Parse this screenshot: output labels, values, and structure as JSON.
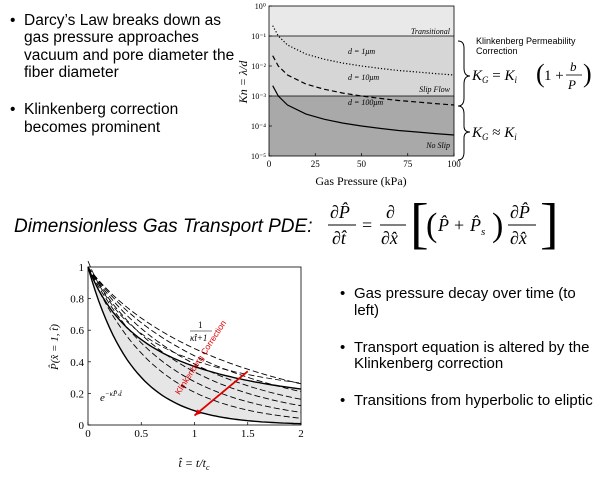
{
  "bullets_top": [
    "Darcy’s Law breaks down as gas pressure approaches vacuum and pore diameter the fiber diameter",
    "Klinkenberg correction becomes prominent"
  ],
  "bullets_bottom": [
    "Gas pressure decay over time (to left)",
    "Transport equation is altered  by the Klinkenberg correction",
    "Transitions from hyperbolic to eliptic"
  ],
  "pde_label": "Dimensionless Gas  Transport PDE:",
  "klinkenberg_note": "Klinkenberg Permeability Correction",
  "equations": {
    "kg_full": "K_G = K_i (1 + b/P)",
    "kg_approx": "K_G ≈ K_i"
  },
  "colors": {
    "transitional_band": "#e9e9e9",
    "slip_band": "#d6d6d6",
    "noslip_band": "#a9a9a9",
    "bottom_fill": "#e6e6e6",
    "arrow": "#e00000"
  },
  "chart_data": [
    {
      "type": "line",
      "xlabel": "Gas Pressure (kPa)",
      "ylabel": "Kn = λ/d",
      "xlim": [
        0,
        100
      ],
      "ylim": [
        1e-05,
        1
      ],
      "yscale": "log",
      "x_ticks": [
        "0",
        "25",
        "50",
        "75",
        "100"
      ],
      "y_ticks": [
        "10⁰",
        "10⁻¹",
        "10⁻²",
        "10⁻³",
        "10⁻⁴",
        "10⁻⁵"
      ],
      "regions": [
        {
          "label": "Transitional",
          "from": 0.1,
          "to": 1
        },
        {
          "label": "Slip Flow",
          "from": 0.001,
          "to": 0.1
        },
        {
          "label": "No Slip",
          "from": 1e-05,
          "to": 0.001
        }
      ],
      "boundaries": [
        0.1,
        0.001
      ],
      "series": [
        {
          "name": "d = 1μm",
          "style": "dotted",
          "x": [
            2,
            5,
            10,
            20,
            30,
            40,
            50,
            60,
            70,
            80,
            90,
            100
          ],
          "y": [
            0.22,
            0.1,
            0.05,
            0.025,
            0.0167,
            0.0125,
            0.01,
            0.0083,
            0.0071,
            0.0063,
            0.0056,
            0.005
          ]
        },
        {
          "name": "d = 10μm",
          "style": "dashed",
          "x": [
            2,
            5,
            10,
            20,
            30,
            40,
            50,
            60,
            70,
            80,
            90,
            100
          ],
          "y": [
            0.022,
            0.01,
            0.005,
            0.0025,
            0.00167,
            0.00125,
            0.001,
            0.00083,
            0.00071,
            0.00063,
            0.00056,
            0.0005
          ]
        },
        {
          "name": "d = 100μm",
          "style": "solid",
          "x": [
            2,
            5,
            10,
            20,
            30,
            40,
            50,
            60,
            70,
            80,
            90,
            100
          ],
          "y": [
            0.0022,
            0.001,
            0.0005,
            0.00025,
            0.000167,
            0.000125,
            0.0001,
            8.3e-05,
            7.1e-05,
            6.3e-05,
            5.6e-05,
            5e-05
          ]
        }
      ]
    },
    {
      "type": "line",
      "xlabel": "t̂ = t/t_c",
      "ylabel": "P̂(x̂ = 1, t̂)",
      "xlim": [
        0,
        2
      ],
      "ylim": [
        0,
        1
      ],
      "x_ticks": [
        "0",
        "0.5",
        "1",
        "1.5",
        "2"
      ],
      "y_ticks": [
        "0",
        "0.2",
        "0.4",
        "0.6",
        "0.8",
        "1"
      ],
      "annotations": [
        "1/(κt̂+1)",
        "e^(−κP̂ₛt̂)",
        "Klinkenberg Correction"
      ],
      "upper_bound": {
        "label": "1/(κt̂+1)",
        "kappa": 1.7
      },
      "lower_bound": {
        "label": "e^(−κP̂ₛt̂)",
        "rate": 2.4
      },
      "dashed_rates": [
        1.5,
        1.25,
        1.05,
        0.9,
        0.75,
        0.62
      ]
    }
  ]
}
